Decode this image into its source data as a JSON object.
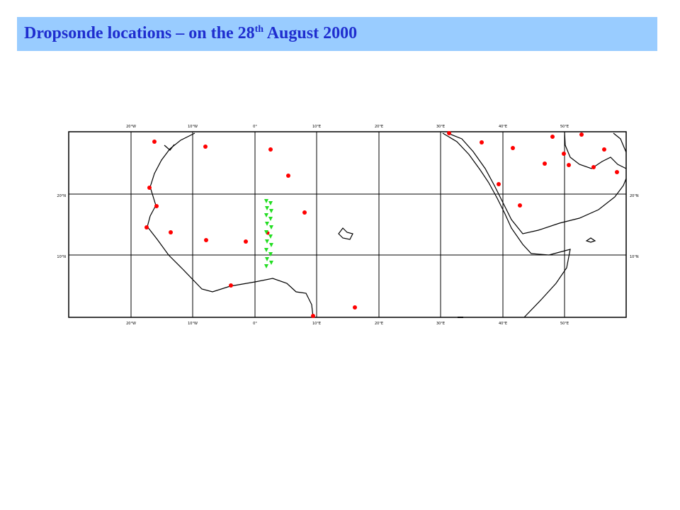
{
  "header": {
    "title": "Dropsonde locations – on the 28",
    "title_sup": "th",
    "title_end": " August 2000"
  },
  "map": {
    "top_labels": [
      "20°W",
      "10°W",
      "0°",
      "10°E",
      "20°E",
      "30°E",
      "40°E",
      "50°E"
    ],
    "bottom_labels": [
      "20°W",
      "10°W",
      "0°",
      "10°E",
      "20°E",
      "30°E",
      "40°E",
      "50°E"
    ],
    "left_labels": [
      "20°N",
      "10°N"
    ],
    "right_labels": [
      "20°N",
      "10°N"
    ]
  }
}
